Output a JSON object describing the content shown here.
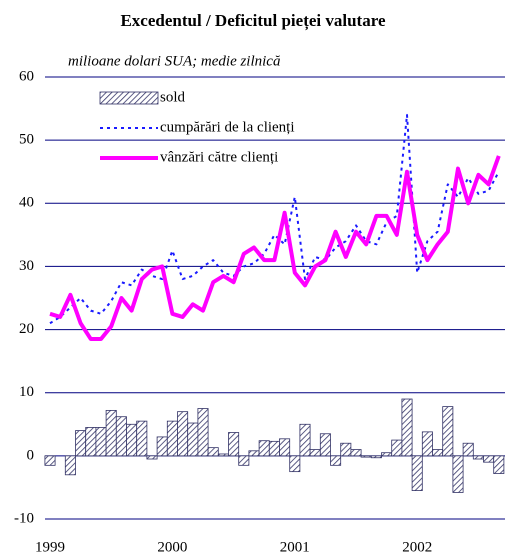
{
  "chart_data": {
    "type": "bar-line",
    "title": "Excedentul / Deficitul pieței valutare",
    "subtitle": "milioane dolari SUA; medie zilnică",
    "categories": [
      "1999",
      null,
      null,
      null,
      null,
      null,
      null,
      null,
      null,
      null,
      null,
      null,
      "2000",
      null,
      null,
      null,
      null,
      null,
      null,
      null,
      null,
      null,
      null,
      null,
      "2001",
      null,
      null,
      null,
      null,
      null,
      null,
      null,
      null,
      null,
      null,
      null,
      "2002",
      null,
      null,
      null,
      null,
      null,
      null,
      null,
      null
    ],
    "series": [
      {
        "name": "sold",
        "kind": "bar",
        "color": "#333366",
        "values": [
          -1.5,
          0,
          -3,
          4,
          4.5,
          4.5,
          7.2,
          6.2,
          5,
          5.5,
          -0.5,
          3,
          5.5,
          7,
          5.2,
          7.5,
          1.3,
          0.3,
          3.7,
          -1.5,
          0.8,
          2.4,
          2.3,
          2.7,
          -2.5,
          5,
          1,
          3.5,
          -1.5,
          2,
          1,
          -0.2,
          -0.3,
          0.5,
          2.5,
          9,
          -5.5,
          3.8,
          1,
          7.8,
          -5.8,
          2,
          -0.5,
          -1,
          -2.8
        ]
      },
      {
        "name": "cumpărări de la clienți",
        "kind": "dotted",
        "color": "#1a1aff",
        "values": [
          21,
          22,
          23.5,
          25,
          23,
          22.5,
          24.5,
          27.5,
          27,
          29.5,
          28.5,
          28,
          32.5,
          28,
          28.5,
          30,
          31,
          29,
          28.5,
          30,
          30.5,
          32,
          35,
          33.5,
          41,
          28,
          31.5,
          31,
          33,
          34,
          36.5,
          34,
          33.5,
          37,
          38,
          54,
          29,
          34,
          35.5,
          43,
          41,
          44,
          41.5,
          42,
          45
        ]
      },
      {
        "name": "vânzări către clienți",
        "kind": "line",
        "color": "#ff00ff",
        "values": [
          22.5,
          22,
          25.5,
          21,
          18.5,
          18.5,
          20.5,
          25,
          23,
          28,
          29.5,
          30,
          22.5,
          22,
          24,
          23,
          27.5,
          28.5,
          27.5,
          32,
          33,
          31,
          31,
          38.5,
          29,
          27,
          30,
          31,
          35.5,
          31.5,
          35.5,
          33.5,
          38,
          38,
          35,
          45,
          35,
          31,
          33.5,
          35.5,
          45.5,
          40,
          44.5,
          43,
          47.5
        ]
      }
    ],
    "ylim": [
      -10,
      60
    ],
    "yticks": [
      -10,
      0,
      10,
      20,
      30,
      40,
      50,
      60
    ],
    "grid": true,
    "legend": "upper left"
  }
}
